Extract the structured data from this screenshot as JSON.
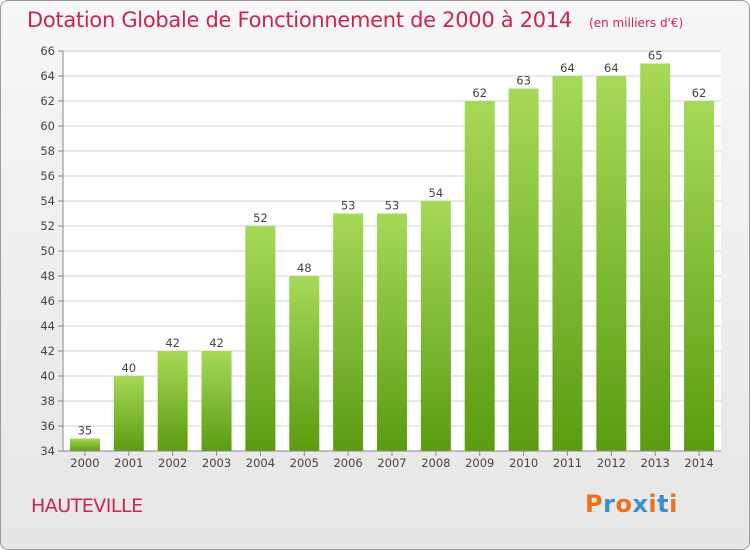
{
  "header": {
    "title": "Dotation Globale de Fonctionnement de 2000 à 2014",
    "unit": "(en milliers d'€)"
  },
  "footer": {
    "commune": "HAUTEVILLE",
    "logo_text": "Proxiti",
    "logo_colors": [
      "#e8731c",
      "#3a8fd0",
      "#e8731c",
      "#3a8fd0",
      "#e8731c",
      "#3a8fd0",
      "#e8731c"
    ]
  },
  "colors": {
    "bar_top": "#a6d957",
    "bar_bottom": "#5a9c10",
    "title": "#c8264e",
    "grid": "#d0d0d0"
  },
  "chart_data": {
    "type": "bar",
    "title": "Dotation Globale de Fonctionnement de 2000 à 2014",
    "subtitle": "(en milliers d'€)",
    "categories": [
      "2000",
      "2001",
      "2002",
      "2003",
      "2004",
      "2005",
      "2006",
      "2007",
      "2008",
      "2009",
      "2010",
      "2011",
      "2012",
      "2013",
      "2014"
    ],
    "values": [
      35,
      40,
      42,
      42,
      52,
      48,
      53,
      53,
      54,
      62,
      63,
      64,
      64,
      65,
      62
    ],
    "ylim": [
      34,
      66
    ],
    "yticks": [
      34,
      36,
      38,
      40,
      42,
      44,
      46,
      48,
      50,
      52,
      54,
      56,
      58,
      60,
      62,
      64,
      66
    ],
    "grid": true,
    "data_labels": true
  }
}
